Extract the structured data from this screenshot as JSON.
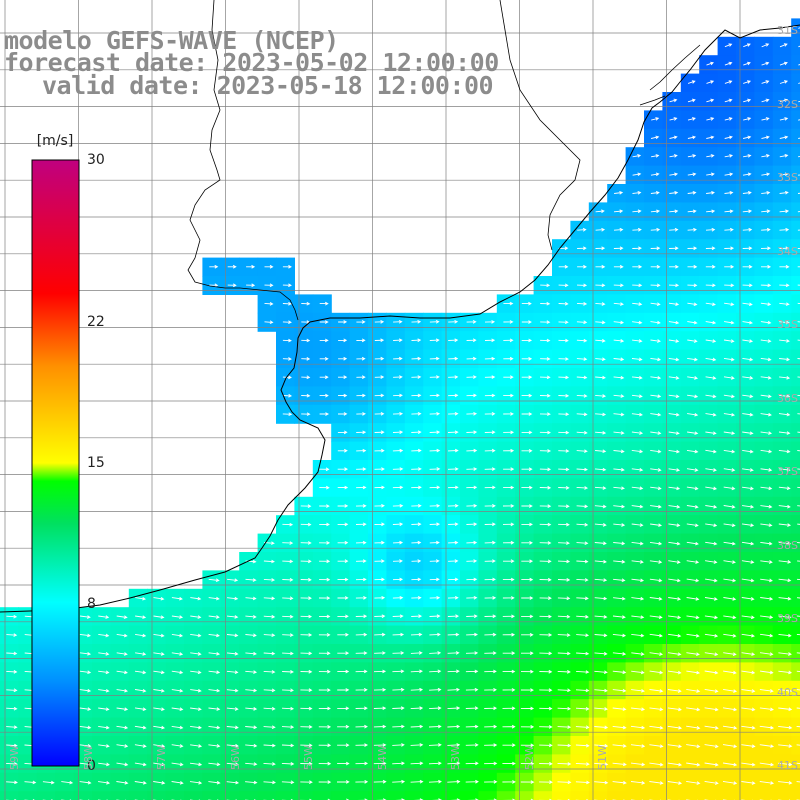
{
  "title": {
    "model": "modelo GEFS-WAVE (NCEP)",
    "forecast": "forecast date: 2023-05-02 12:00:00",
    "valid": "valid date: 2023-05-18 12:00:00"
  },
  "colorbar": {
    "units": "[m/s]",
    "ticks": [
      {
        "label": "30",
        "value": 30
      },
      {
        "label": "22",
        "value": 22
      },
      {
        "label": "15",
        "value": 15
      },
      {
        "label": "8",
        "value": 8
      },
      {
        "label": "0",
        "value": 0
      }
    ],
    "colors": [
      "#0000ff",
      "#00a0ff",
      "#00ffff",
      "#00ff00",
      "#ffff00",
      "#ff8000",
      "#ff0000",
      "#c0007f"
    ]
  },
  "map": {
    "variable": "wind speed and direction",
    "land_color": "#ffffff",
    "coast_color": "#000000",
    "grid_color": "#808080",
    "lat_labels": [
      "31S",
      "32S",
      "33S",
      "34S",
      "35S",
      "36S",
      "37S",
      "38S",
      "39S",
      "40S",
      "41S"
    ],
    "lon_labels": [
      "59W",
      "58W",
      "57W",
      "56W",
      "55W",
      "54W",
      "53W",
      "52W",
      "51W"
    ]
  }
}
